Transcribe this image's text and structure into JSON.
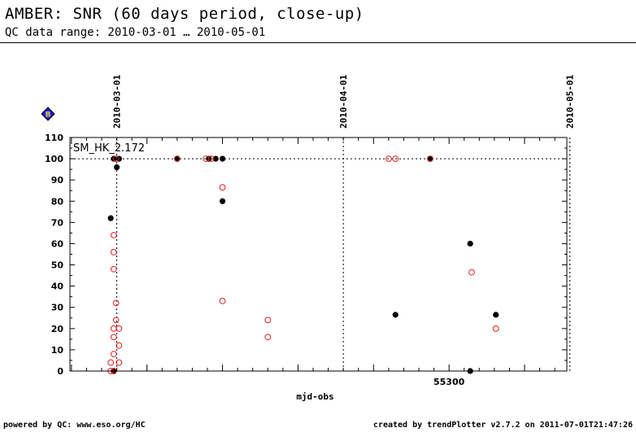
{
  "title": "AMBER: SNR (60 days period, close-up)",
  "subtitle": "QC data range: 2010-03-01 … 2010-05-01",
  "footer": {
    "left": "powered by QC: www.eso.org/HC",
    "right": "created by trendPlotter v2.7.2 on 2011-07-01T21:47:26"
  },
  "chart_data": {
    "type": "scatter",
    "xlabel": "mjd-obs",
    "ylabel": "",
    "xlim": [
      55249.8,
      55315.6
    ],
    "ylim": [
      0,
      110
    ],
    "x_tick_labels": [
      {
        "value": 55300,
        "label": "55300"
      }
    ],
    "y_ticks": [
      0,
      10,
      20,
      30,
      40,
      50,
      60,
      70,
      80,
      90,
      100,
      110
    ],
    "date_markers": [
      {
        "value": 55256,
        "label": "2010-03-01"
      },
      {
        "value": 55286,
        "label": "2010-04-01"
      },
      {
        "value": 55316,
        "label": "2010-05-01"
      }
    ],
    "reference_line_y": 100,
    "panel_label": "SM_HK_2.172",
    "marker_badge": "B",
    "colors": {
      "filled": "#000000",
      "open": "#e02020",
      "badge": "#1a1aff"
    },
    "series": [
      {
        "marker": "filled",
        "points": [
          [
            55255.6,
            100
          ],
          [
            55256.3,
            100
          ],
          [
            55256.0,
            96
          ],
          [
            55255.6,
            0
          ],
          [
            55255.2,
            72
          ],
          [
            55264.0,
            100
          ],
          [
            55268.2,
            100
          ],
          [
            55269.1,
            100
          ],
          [
            55270.0,
            100
          ],
          [
            55270.0,
            80
          ],
          [
            55292.9,
            26.5
          ],
          [
            55297.5,
            100
          ],
          [
            55302.8,
            60
          ],
          [
            55302.8,
            0
          ],
          [
            55306.2,
            26.5
          ]
        ]
      },
      {
        "marker": "open",
        "points": [
          [
            55255.9,
            100
          ],
          [
            55255.6,
            64
          ],
          [
            55255.6,
            56
          ],
          [
            55255.6,
            48
          ],
          [
            55255.9,
            32
          ],
          [
            55255.9,
            24
          ],
          [
            55255.6,
            20
          ],
          [
            55256.3,
            20
          ],
          [
            55255.6,
            16
          ],
          [
            55256.3,
            12
          ],
          [
            55255.6,
            8
          ],
          [
            55255.2,
            4
          ],
          [
            55256.3,
            4
          ],
          [
            55255.2,
            0
          ],
          [
            55255.6,
            0
          ],
          [
            55264.0,
            100
          ],
          [
            55267.8,
            100
          ],
          [
            55268.5,
            100
          ],
          [
            55270.0,
            86.5
          ],
          [
            55270.0,
            33
          ],
          [
            55276.0,
            24
          ],
          [
            55276.0,
            16
          ],
          [
            55292.0,
            100
          ],
          [
            55292.9,
            100
          ],
          [
            55297.5,
            100
          ],
          [
            55303.0,
            46.5
          ],
          [
            55306.2,
            20
          ]
        ]
      }
    ]
  }
}
